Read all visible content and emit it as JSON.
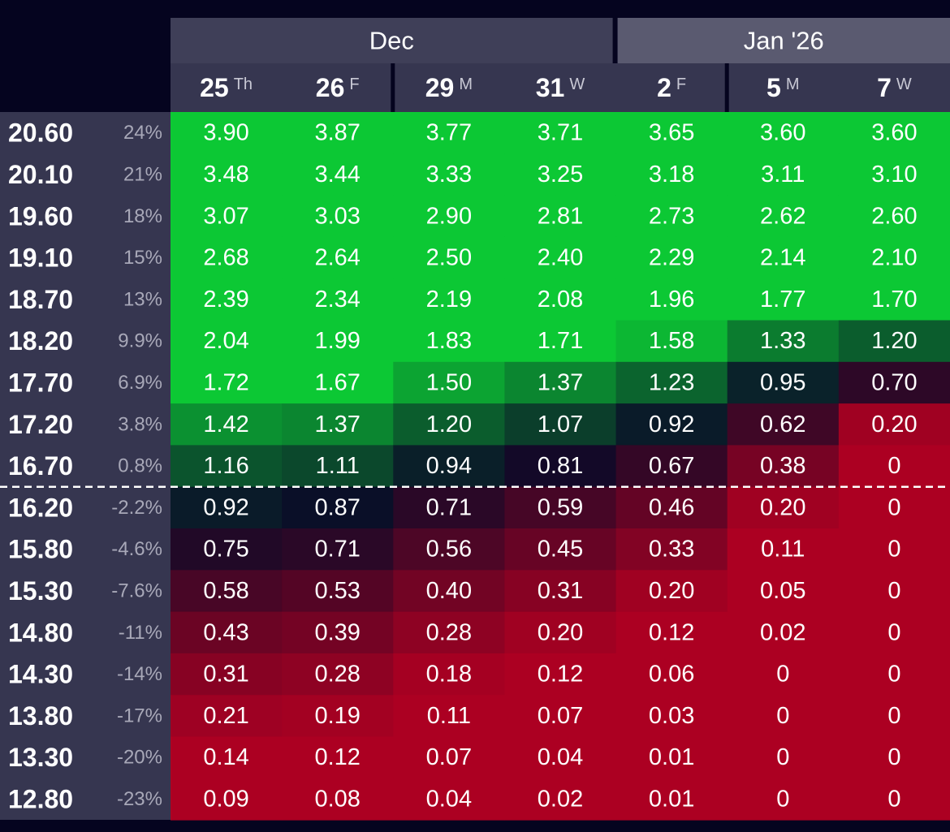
{
  "header": {
    "months": [
      {
        "label": "Dec"
      },
      {
        "label": "Jan '26"
      }
    ],
    "days": [
      {
        "day": "25",
        "weekday": "Th"
      },
      {
        "day": "26",
        "weekday": "F"
      },
      {
        "day": "29",
        "weekday": "M"
      },
      {
        "day": "31",
        "weekday": "W"
      },
      {
        "day": "2",
        "weekday": "F"
      },
      {
        "day": "5",
        "weekday": "M"
      },
      {
        "day": "7",
        "weekday": "W"
      }
    ]
  },
  "table": {
    "rows": [
      {
        "strike": "20.60",
        "change": "24%",
        "values": [
          "3.90",
          "3.87",
          "3.77",
          "3.71",
          "3.65",
          "3.60",
          "3.60"
        ]
      },
      {
        "strike": "20.10",
        "change": "21%",
        "values": [
          "3.48",
          "3.44",
          "3.33",
          "3.25",
          "3.18",
          "3.11",
          "3.10"
        ]
      },
      {
        "strike": "19.60",
        "change": "18%",
        "values": [
          "3.07",
          "3.03",
          "2.90",
          "2.81",
          "2.73",
          "2.62",
          "2.60"
        ]
      },
      {
        "strike": "19.10",
        "change": "15%",
        "values": [
          "2.68",
          "2.64",
          "2.50",
          "2.40",
          "2.29",
          "2.14",
          "2.10"
        ]
      },
      {
        "strike": "18.70",
        "change": "13%",
        "values": [
          "2.39",
          "2.34",
          "2.19",
          "2.08",
          "1.96",
          "1.77",
          "1.70"
        ]
      },
      {
        "strike": "18.20",
        "change": "9.9%",
        "values": [
          "2.04",
          "1.99",
          "1.83",
          "1.71",
          "1.58",
          "1.33",
          "1.20"
        ]
      },
      {
        "strike": "17.70",
        "change": "6.9%",
        "values": [
          "1.72",
          "1.67",
          "1.50",
          "1.37",
          "1.23",
          "0.95",
          "0.70"
        ]
      },
      {
        "strike": "17.20",
        "change": "3.8%",
        "values": [
          "1.42",
          "1.37",
          "1.20",
          "1.07",
          "0.92",
          "0.62",
          "0.20"
        ]
      },
      {
        "strike": "16.70",
        "change": "0.8%",
        "values": [
          "1.16",
          "1.11",
          "0.94",
          "0.81",
          "0.67",
          "0.38",
          "0"
        ]
      },
      {
        "strike": "16.20",
        "change": "-2.2%",
        "values": [
          "0.92",
          "0.87",
          "0.71",
          "0.59",
          "0.46",
          "0.20",
          "0"
        ]
      },
      {
        "strike": "15.80",
        "change": "-4.6%",
        "values": [
          "0.75",
          "0.71",
          "0.56",
          "0.45",
          "0.33",
          "0.11",
          "0"
        ]
      },
      {
        "strike": "15.30",
        "change": "-7.6%",
        "values": [
          "0.58",
          "0.53",
          "0.40",
          "0.31",
          "0.20",
          "0.05",
          "0"
        ]
      },
      {
        "strike": "14.80",
        "change": "-11%",
        "values": [
          "0.43",
          "0.39",
          "0.28",
          "0.20",
          "0.12",
          "0.02",
          "0"
        ]
      },
      {
        "strike": "14.30",
        "change": "-14%",
        "values": [
          "0.31",
          "0.28",
          "0.18",
          "0.12",
          "0.06",
          "0",
          "0"
        ]
      },
      {
        "strike": "13.80",
        "change": "-17%",
        "values": [
          "0.21",
          "0.19",
          "0.11",
          "0.07",
          "0.03",
          "0",
          "0"
        ]
      },
      {
        "strike": "13.30",
        "change": "-20%",
        "values": [
          "0.14",
          "0.12",
          "0.07",
          "0.04",
          "0.01",
          "0",
          "0"
        ]
      },
      {
        "strike": "12.80",
        "change": "-23%",
        "values": [
          "0.09",
          "0.08",
          "0.04",
          "0.02",
          "0.01",
          "0",
          "0"
        ]
      }
    ]
  }
}
